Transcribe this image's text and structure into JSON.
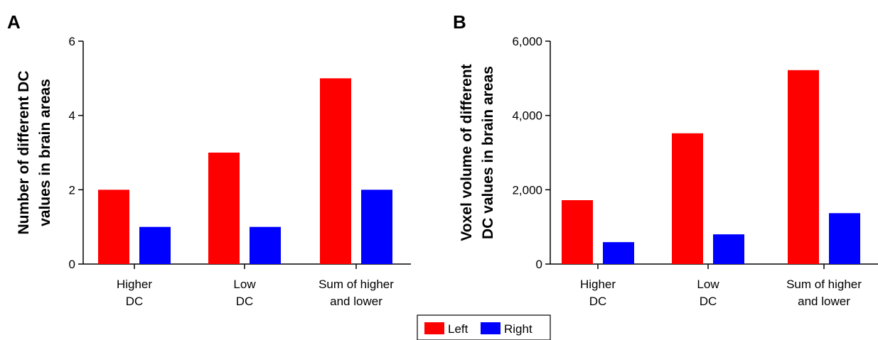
{
  "chart_data": [
    {
      "type": "bar",
      "panel": "A",
      "categories": [
        [
          "Higher",
          "DC"
        ],
        [
          "Low",
          "DC"
        ],
        [
          "Sum of higher",
          "and lower"
        ]
      ],
      "series": [
        {
          "name": "Left",
          "color": "#ff0000",
          "values": [
            2,
            3,
            5
          ]
        },
        {
          "name": "Right",
          "color": "#0000ff",
          "values": [
            1,
            1,
            2
          ]
        }
      ],
      "ylabel": [
        "Number of different DC",
        "values in brain areas"
      ],
      "ylim": [
        0,
        6
      ],
      "yticks": [
        0,
        2,
        4,
        6
      ],
      "ytick_labels": [
        "0",
        "2",
        "4",
        "6"
      ],
      "grid": false
    },
    {
      "type": "bar",
      "panel": "B",
      "categories": [
        [
          "Higher",
          "DC"
        ],
        [
          "Low",
          "DC"
        ],
        [
          "Sum of higher",
          "and lower"
        ]
      ],
      "series": [
        {
          "name": "Left",
          "color": "#ff0000",
          "values": [
            1720,
            3520,
            5220
          ]
        },
        {
          "name": "Right",
          "color": "#0000ff",
          "values": [
            590,
            800,
            1370
          ]
        }
      ],
      "ylabel": [
        "Voxel volume of different",
        "DC values in brain areas"
      ],
      "ylim": [
        0,
        6000
      ],
      "yticks": [
        0,
        2000,
        4000,
        6000
      ],
      "ytick_labels": [
        "0",
        "2,000",
        "4,000",
        "6,000"
      ],
      "grid": false
    }
  ],
  "legend": {
    "placement": "bottom-center",
    "entries": [
      {
        "label": "Left",
        "color": "#ff0000"
      },
      {
        "label": "Right",
        "color": "#0000ff"
      }
    ]
  }
}
